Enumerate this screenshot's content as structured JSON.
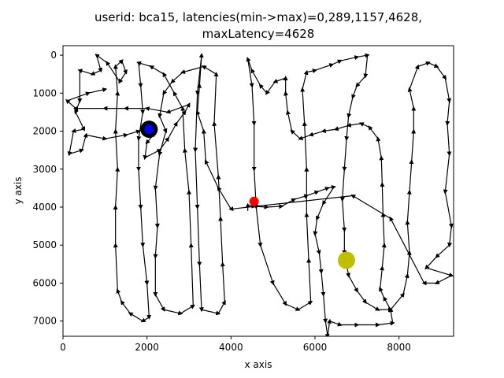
{
  "chart_data": {
    "type": "scatter",
    "title_line1": "userid: bca15, latencies(min->max)=0,289,1157,4628,",
    "title_line2": "maxLatency=4628",
    "xlabel": "x axis",
    "ylabel": "y axis",
    "xlim": [
      0,
      9300
    ],
    "ylim": [
      7400,
      -250
    ],
    "y_inverted": true,
    "grid": false,
    "xticks": [
      0,
      2000,
      4000,
      6000,
      8000
    ],
    "yticks": [
      0,
      1000,
      2000,
      3000,
      4000,
      5000,
      6000,
      7000
    ],
    "trajectory": [
      [
        4400,
        4100
      ],
      [
        4400,
        3950
      ],
      [
        4550,
        3980
      ],
      [
        4850,
        4000
      ],
      [
        5200,
        3980
      ],
      [
        5500,
        3800
      ],
      [
        5800,
        3700
      ],
      [
        6050,
        3600
      ],
      [
        6300,
        3500
      ],
      [
        6450,
        3470
      ],
      [
        6200,
        3900
      ],
      [
        6050,
        4300
      ],
      [
        6000,
        4700
      ],
      [
        6100,
        5200
      ],
      [
        6150,
        5700
      ],
      [
        6200,
        6300
      ],
      [
        6250,
        7000
      ],
      [
        6300,
        7400
      ],
      [
        6350,
        7000
      ],
      [
        6600,
        7100
      ],
      [
        7000,
        7100
      ],
      [
        7500,
        7100
      ],
      [
        7850,
        7050
      ],
      [
        7800,
        6700
      ],
      [
        7650,
        6400
      ],
      [
        7550,
        6150
      ],
      [
        7600,
        5600
      ],
      [
        7650,
        5000
      ],
      [
        7620,
        4200
      ],
      [
        7600,
        3400
      ],
      [
        7580,
        2700
      ],
      [
        7500,
        2200
      ],
      [
        7300,
        1900
      ],
      [
        7100,
        1800
      ],
      [
        6800,
        1850
      ],
      [
        6500,
        1950
      ],
      [
        6200,
        2000
      ],
      [
        5900,
        2100
      ],
      [
        5650,
        2200
      ],
      [
        5450,
        2000
      ],
      [
        5350,
        1500
      ],
      [
        5300,
        1000
      ],
      [
        5300,
        600
      ],
      [
        5050,
        700
      ],
      [
        4850,
        1000
      ],
      [
        4700,
        800
      ],
      [
        4500,
        400
      ],
      [
        4400,
        100
      ],
      [
        4500,
        800
      ],
      [
        4550,
        1800
      ],
      [
        4550,
        3000
      ],
      [
        4600,
        4000
      ],
      [
        4700,
        5000
      ],
      [
        5000,
        6000
      ],
      [
        5300,
        6550
      ],
      [
        5600,
        6700
      ],
      [
        5900,
        6500
      ],
      [
        5850,
        5400
      ],
      [
        5800,
        4200
      ],
      [
        5800,
        3000
      ],
      [
        5750,
        1800
      ],
      [
        5700,
        900
      ],
      [
        5800,
        450
      ],
      [
        6000,
        400
      ],
      [
        6400,
        250
      ],
      [
        6600,
        150
      ],
      [
        7000,
        50
      ],
      [
        7250,
        0
      ],
      [
        7200,
        550
      ],
      [
        7000,
        800
      ],
      [
        6900,
        1100
      ],
      [
        6800,
        1600
      ],
      [
        6750,
        2200
      ],
      [
        6700,
        3000
      ],
      [
        6650,
        3800
      ],
      [
        6700,
        4600
      ],
      [
        6700,
        5200
      ],
      [
        6800,
        5800
      ],
      [
        7000,
        6200
      ],
      [
        7200,
        6500
      ],
      [
        7500,
        6700
      ],
      [
        7800,
        6700
      ],
      [
        8100,
        6300
      ],
      [
        8200,
        5800
      ],
      [
        8250,
        5200
      ],
      [
        8200,
        4400
      ],
      [
        8250,
        3600
      ],
      [
        8300,
        2800
      ],
      [
        8350,
        2000
      ],
      [
        8350,
        1400
      ],
      [
        8250,
        900
      ],
      [
        8450,
        300
      ],
      [
        8700,
        200
      ],
      [
        8900,
        300
      ],
      [
        9100,
        600
      ],
      [
        9200,
        1200
      ],
      [
        9150,
        1800
      ],
      [
        9200,
        2600
      ],
      [
        9100,
        3600
      ],
      [
        9250,
        4500
      ],
      [
        9200,
        5000
      ],
      [
        8900,
        5300
      ],
      [
        8650,
        5600
      ],
      [
        9250,
        5800
      ],
      [
        8900,
        6000
      ],
      [
        8600,
        6000
      ],
      [
        7800,
        4300
      ],
      [
        6900,
        3700
      ],
      [
        4000,
        4050
      ],
      [
        3700,
        3500
      ],
      [
        3400,
        2800
      ],
      [
        3350,
        2000
      ],
      [
        3200,
        1500
      ],
      [
        3250,
        800
      ],
      [
        3300,
        0
      ],
      [
        3200,
        1000
      ],
      [
        3150,
        2500
      ],
      [
        3200,
        4000
      ],
      [
        3250,
        5500
      ],
      [
        3300,
        6700
      ],
      [
        3700,
        6800
      ],
      [
        3850,
        6500
      ],
      [
        3800,
        5500
      ],
      [
        3750,
        4300
      ],
      [
        3700,
        3200
      ],
      [
        3600,
        1800
      ],
      [
        3650,
        500
      ],
      [
        3350,
        300
      ],
      [
        2850,
        450
      ],
      [
        2600,
        700
      ],
      [
        2400,
        1000
      ],
      [
        2300,
        1600
      ],
      [
        2450,
        2000
      ],
      [
        2300,
        2600
      ],
      [
        2200,
        3500
      ],
      [
        2250,
        4500
      ],
      [
        2200,
        5300
      ],
      [
        2200,
        6300
      ],
      [
        2400,
        6700
      ],
      [
        2800,
        6800
      ],
      [
        3100,
        6600
      ],
      [
        3050,
        5000
      ],
      [
        3000,
        3600
      ],
      [
        2900,
        2500
      ],
      [
        2850,
        1400
      ],
      [
        2650,
        1000
      ],
      [
        2400,
        500
      ],
      [
        2100,
        300
      ],
      [
        1800,
        200
      ],
      [
        1850,
        800
      ],
      [
        1900,
        1500
      ],
      [
        1800,
        2200
      ],
      [
        1800,
        3000
      ],
      [
        1850,
        4000
      ],
      [
        1900,
        5000
      ],
      [
        2000,
        6000
      ],
      [
        2050,
        6900
      ],
      [
        1900,
        7000
      ],
      [
        1600,
        6800
      ],
      [
        1400,
        6500
      ],
      [
        1300,
        6200
      ],
      [
        1250,
        5000
      ],
      [
        1250,
        4000
      ],
      [
        1300,
        3000
      ],
      [
        1250,
        2000
      ],
      [
        1300,
        1000
      ],
      [
        1250,
        300
      ],
      [
        1400,
        150
      ],
      [
        1500,
        450
      ],
      [
        1350,
        700
      ],
      [
        1050,
        200
      ],
      [
        800,
        0
      ],
      [
        900,
        400
      ],
      [
        700,
        500
      ],
      [
        400,
        400
      ],
      [
        400,
        1200
      ],
      [
        300,
        1500
      ],
      [
        500,
        1950
      ],
      [
        250,
        2000
      ],
      [
        150,
        2600
      ],
      [
        450,
        2500
      ],
      [
        550,
        2100
      ],
      [
        1000,
        2200
      ],
      [
        1500,
        2100
      ],
      [
        1800,
        2000
      ],
      [
        2050,
        1900
      ],
      [
        2150,
        2100
      ],
      [
        2000,
        2300
      ],
      [
        1950,
        2700
      ],
      [
        2300,
        2500
      ],
      [
        2500,
        2200
      ],
      [
        2700,
        1800
      ],
      [
        2900,
        1500
      ],
      [
        3000,
        1300
      ],
      [
        2500,
        1500
      ],
      [
        2000,
        1400
      ],
      [
        1500,
        1400
      ],
      [
        1000,
        1400
      ],
      [
        300,
        1400
      ],
      [
        100,
        1200
      ],
      [
        600,
        1000
      ],
      [
        1000,
        900
      ]
    ],
    "markers": [
      {
        "name": "target",
        "x": 2050,
        "y": 1950,
        "color": "#0000ff",
        "ring_color": "#000000"
      },
      {
        "name": "start",
        "x": 4550,
        "y": 3850,
        "color": "#ff0000"
      },
      {
        "name": "goal",
        "x": 6750,
        "y": 5400,
        "color": "#bfbf00"
      }
    ]
  }
}
